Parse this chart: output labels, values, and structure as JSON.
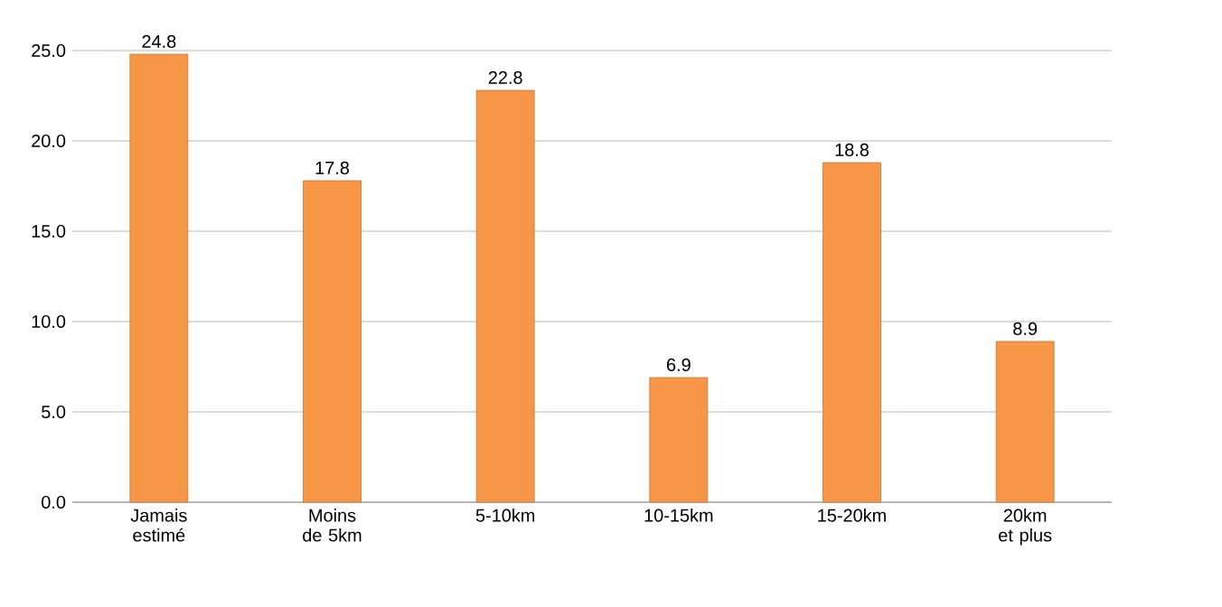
{
  "chart_data": {
    "type": "bar",
    "categories": [
      "Jamais estimé",
      "Moins de 5km",
      "5-10km",
      "10-15km",
      "15-20km",
      "20km et plus"
    ],
    "values": [
      24.8,
      17.8,
      22.8,
      6.9,
      18.8,
      8.9
    ],
    "color": "#f79646",
    "ylim": [
      0,
      25
    ],
    "yticks": [
      {
        "value": 0,
        "label": "0.0"
      },
      {
        "value": 5,
        "label": "5.0"
      },
      {
        "value": 10,
        "label": "10.0"
      },
      {
        "value": 15,
        "label": "15.0"
      },
      {
        "value": 20,
        "label": "20.0"
      },
      {
        "value": 25,
        "label": "25.0"
      }
    ],
    "grid": "y",
    "data_labels": true
  }
}
